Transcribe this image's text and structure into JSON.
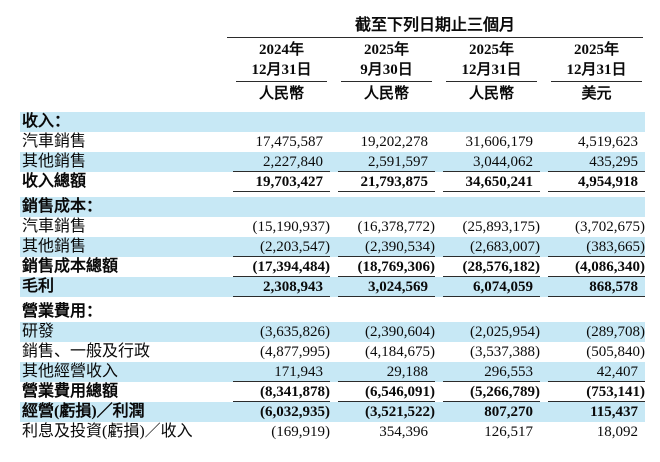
{
  "colors": {
    "row_stripe": "#c7e8f5",
    "rule": "#2b2b2b",
    "text": "#0a0a0a",
    "background": "#ffffff"
  },
  "header": {
    "period_title": "截至下列日期止三個月",
    "columns": [
      {
        "year": "2024年",
        "date": "12月31日",
        "currency": "人民幣"
      },
      {
        "year": "2025年",
        "date": "9月30日",
        "currency": "人民幣"
      },
      {
        "year": "2025年",
        "date": "12月31日",
        "currency": "人民幣"
      },
      {
        "year": "2025年",
        "date": "12月31日",
        "currency": "美元"
      }
    ]
  },
  "table": {
    "rows": [
      {
        "label": "收入：",
        "style": "section",
        "bg": "blue",
        "gap_above": false,
        "rule_below": false,
        "values": [
          "",
          "",
          "",
          ""
        ]
      },
      {
        "label": "汽車銷售",
        "style": "item",
        "bg": "white",
        "gap_above": false,
        "rule_below": false,
        "values": [
          "17,475,587",
          "19,202,278",
          "31,606,179",
          "4,519,623"
        ]
      },
      {
        "label": "其他銷售",
        "style": "item",
        "bg": "blue",
        "gap_above": false,
        "rule_below": true,
        "values": [
          "2,227,840",
          "2,591,597",
          "3,044,062",
          "435,295"
        ]
      },
      {
        "label": "收入總額",
        "style": "total",
        "bg": "white",
        "gap_above": false,
        "rule_below": true,
        "values": [
          "19,703,427",
          "21,793,875",
          "34,650,241",
          "4,954,918"
        ]
      },
      {
        "label": "銷售成本：",
        "style": "section",
        "bg": "blue",
        "gap_above": true,
        "rule_below": false,
        "values": [
          "",
          "",
          "",
          ""
        ]
      },
      {
        "label": "汽車銷售",
        "style": "item",
        "bg": "white",
        "gap_above": false,
        "rule_below": false,
        "values": [
          "(15,190,937)",
          "(16,378,772)",
          "(25,893,175)",
          "(3,702,675)"
        ]
      },
      {
        "label": "其他銷售",
        "style": "item",
        "bg": "blue",
        "gap_above": false,
        "rule_below": true,
        "values": [
          "(2,203,547)",
          "(2,390,534)",
          "(2,683,007)",
          "(383,665)"
        ]
      },
      {
        "label": "銷售成本總額",
        "style": "total",
        "bg": "white",
        "gap_above": false,
        "rule_below": true,
        "values": [
          "(17,394,484)",
          "(18,769,306)",
          "(28,576,182)",
          "(4,086,340)"
        ]
      },
      {
        "label": "毛利",
        "style": "total",
        "bg": "blue",
        "gap_above": false,
        "rule_below": true,
        "values": [
          "2,308,943",
          "3,024,569",
          "6,074,059",
          "868,578"
        ]
      },
      {
        "label": "營業費用：",
        "style": "section",
        "bg": "white",
        "gap_above": true,
        "rule_below": false,
        "values": [
          "",
          "",
          "",
          ""
        ]
      },
      {
        "label": "研發",
        "style": "item",
        "bg": "blue",
        "gap_above": false,
        "rule_below": false,
        "values": [
          "(3,635,826)",
          "(2,390,604)",
          "(2,025,954)",
          "(289,708)"
        ]
      },
      {
        "label": "銷售、一般及行政",
        "style": "item",
        "bg": "white",
        "gap_above": false,
        "rule_below": false,
        "values": [
          "(4,877,995)",
          "(4,184,675)",
          "(3,537,388)",
          "(505,840)"
        ]
      },
      {
        "label": "其他經營收入",
        "style": "item",
        "bg": "blue",
        "gap_above": false,
        "rule_below": true,
        "values": [
          "171,943",
          "29,188",
          "296,553",
          "42,407"
        ]
      },
      {
        "label": "營業費用總額",
        "style": "total",
        "bg": "white",
        "gap_above": false,
        "rule_below": true,
        "values": [
          "(8,341,878)",
          "(6,546,091)",
          "(5,266,789)",
          "(753,141)"
        ]
      },
      {
        "label": "經營(虧損)／利潤",
        "style": "total",
        "bg": "blue",
        "gap_above": false,
        "rule_below": false,
        "values": [
          "(6,032,935)",
          "(3,521,522)",
          "807,270",
          "115,437"
        ]
      },
      {
        "label": "利息及投資(虧損)／收入",
        "style": "item",
        "bg": "white",
        "gap_above": false,
        "rule_below": false,
        "values": [
          "(169,919)",
          "354,396",
          "126,517",
          "18,092"
        ]
      }
    ]
  }
}
